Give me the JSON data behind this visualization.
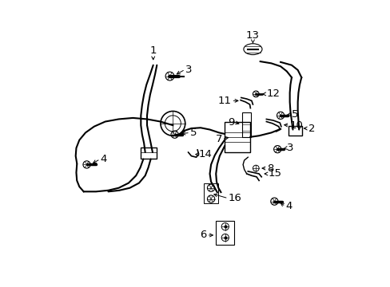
{
  "background_color": "#ffffff",
  "line_color": "#000000",
  "text_color": "#000000",
  "fig_width": 4.89,
  "fig_height": 3.6,
  "dpi": 100,
  "font_size": 9.5
}
